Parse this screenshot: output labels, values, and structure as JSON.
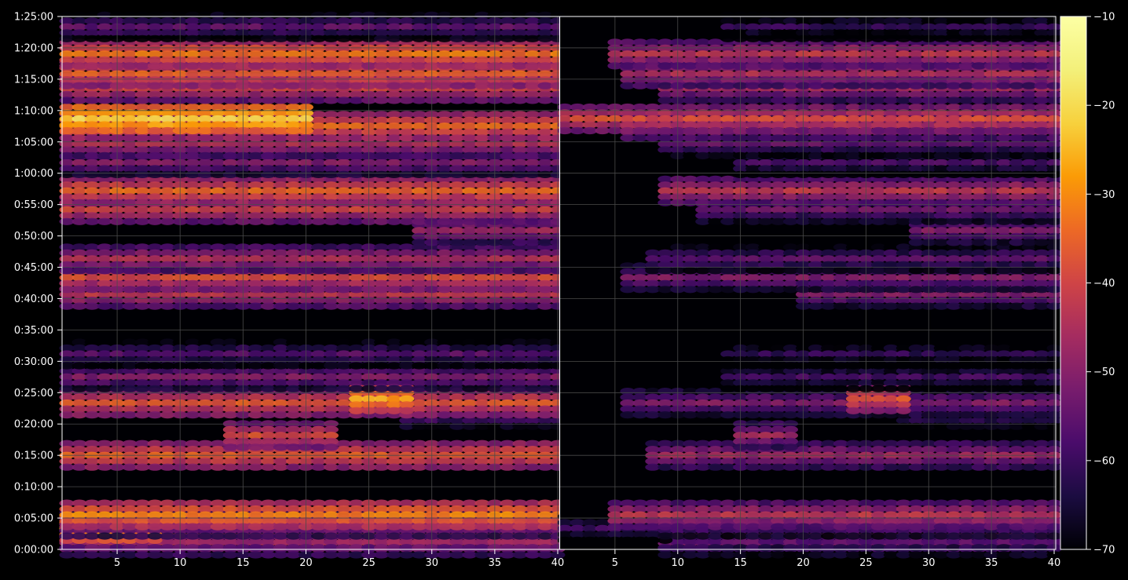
{
  "theme": {
    "background": "#000000",
    "grid": "#4a4a4a",
    "axis": "#ffffff",
    "text": "#ffffff"
  },
  "chart_data": {
    "type": "heatmap",
    "colormap": "inferno",
    "colorbar": {
      "min": -70,
      "max": -10,
      "ticks": [
        "−10",
        "−20",
        "−30",
        "−40",
        "−50",
        "−60",
        "−70"
      ],
      "tick_values": [
        -10,
        -20,
        -30,
        -40,
        -50,
        -60,
        -70
      ]
    },
    "y_axis": {
      "unit": "elapsed time",
      "ticks": [
        "1:25:00",
        "1:20:00",
        "1:15:00",
        "1:10:00",
        "1:05:00",
        "1:00:00",
        "0:55:00",
        "0:50:00",
        "0:45:00",
        "0:40:00",
        "0:35:00",
        "0:30:00",
        "0:25:00",
        "0:20:00",
        "0:15:00",
        "0:10:00",
        "0:05:00",
        "0:00:00"
      ],
      "range_seconds": [
        0,
        5100
      ]
    },
    "panels": [
      {
        "x_range": [
          1,
          40
        ],
        "x_ticks": [
          "5",
          "10",
          "15",
          "20",
          "25",
          "30",
          "35",
          "40"
        ],
        "x_tick_values": [
          5,
          10,
          15,
          20,
          25,
          30,
          35,
          40
        ],
        "bands": [
          {
            "t": 60,
            "level": -44,
            "x_from": 1,
            "x_to": 40
          },
          {
            "t": 130,
            "level": -38,
            "x_from": 1,
            "x_to": 40
          },
          {
            "t": 200,
            "level": -22,
            "x_from": 1,
            "x_to": 8
          },
          {
            "t": 240,
            "level": -45,
            "x_from": 1,
            "x_to": 40
          },
          {
            "t": 330,
            "level": -28,
            "x_from": 1,
            "x_to": 40
          },
          {
            "t": 900,
            "level": -33,
            "x_from": 1,
            "x_to": 40
          },
          {
            "t": 1090,
            "level": -36,
            "x_from": 14,
            "x_to": 22
          },
          {
            "t": 1290,
            "level": -50,
            "x_from": 28,
            "x_to": 40
          },
          {
            "t": 1400,
            "level": -34,
            "x_from": 1,
            "x_to": 40
          },
          {
            "t": 1440,
            "level": -24,
            "x_from": 24,
            "x_to": 28
          },
          {
            "t": 1650,
            "level": -48,
            "x_from": 1,
            "x_to": 40
          },
          {
            "t": 1870,
            "level": -53,
            "x_from": 1,
            "x_to": 40
          },
          {
            "t": 2440,
            "level": -40,
            "x_from": 1,
            "x_to": 40
          },
          {
            "t": 2600,
            "level": -36,
            "x_from": 1,
            "x_to": 40
          },
          {
            "t": 2780,
            "level": -42,
            "x_from": 1,
            "x_to": 40
          },
          {
            "t": 3050,
            "level": -44,
            "x_from": 29,
            "x_to": 40
          },
          {
            "t": 3250,
            "level": -38,
            "x_from": 1,
            "x_to": 40
          },
          {
            "t": 3430,
            "level": -32,
            "x_from": 1,
            "x_to": 40
          },
          {
            "t": 3700,
            "level": -48,
            "x_from": 1,
            "x_to": 40
          },
          {
            "t": 3880,
            "level": -42,
            "x_from": 1,
            "x_to": 40
          },
          {
            "t": 4050,
            "level": -31,
            "x_from": 1,
            "x_to": 40
          },
          {
            "t": 4120,
            "level": -18,
            "x_from": 1,
            "x_to": 20
          },
          {
            "t": 4410,
            "level": -38,
            "x_from": 1,
            "x_to": 40
          },
          {
            "t": 4550,
            "level": -33,
            "x_from": 1,
            "x_to": 40
          },
          {
            "t": 4740,
            "level": -30,
            "x_from": 1,
            "x_to": 40
          },
          {
            "t": 5000,
            "level": -52,
            "x_from": 1,
            "x_to": 40
          }
        ]
      },
      {
        "x_range": [
          1,
          40
        ],
        "x_ticks": [
          "5",
          "10",
          "15",
          "20",
          "25",
          "30",
          "35",
          "40"
        ],
        "x_tick_values": [
          5,
          10,
          15,
          20,
          25,
          30,
          35,
          40
        ],
        "bands": [
          {
            "t": 60,
            "level": -50,
            "x_from": 9,
            "x_to": 40
          },
          {
            "t": 130,
            "level": -46,
            "x_from": 9,
            "x_to": 40
          },
          {
            "t": 200,
            "level": -56,
            "x_from": 1,
            "x_to": 9
          },
          {
            "t": 240,
            "level": -50,
            "x_from": 9,
            "x_to": 40
          },
          {
            "t": 330,
            "level": -40,
            "x_from": 5,
            "x_to": 40
          },
          {
            "t": 900,
            "level": -44,
            "x_from": 8,
            "x_to": 40
          },
          {
            "t": 1090,
            "level": -44,
            "x_from": 15,
            "x_to": 19
          },
          {
            "t": 1290,
            "level": -52,
            "x_from": 28,
            "x_to": 40
          },
          {
            "t": 1400,
            "level": -48,
            "x_from": 6,
            "x_to": 40
          },
          {
            "t": 1440,
            "level": -34,
            "x_from": 24,
            "x_to": 28
          },
          {
            "t": 1650,
            "level": -56,
            "x_from": 14,
            "x_to": 40
          },
          {
            "t": 1870,
            "level": -58,
            "x_from": 14,
            "x_to": 40
          },
          {
            "t": 2440,
            "level": -48,
            "x_from": 20,
            "x_to": 40
          },
          {
            "t": 2600,
            "level": -48,
            "x_from": 6,
            "x_to": 40
          },
          {
            "t": 2780,
            "level": -52,
            "x_from": 8,
            "x_to": 40
          },
          {
            "t": 3050,
            "level": -48,
            "x_from": 29,
            "x_to": 40
          },
          {
            "t": 3250,
            "level": -50,
            "x_from": 12,
            "x_to": 40
          },
          {
            "t": 3430,
            "level": -40,
            "x_from": 9,
            "x_to": 40
          },
          {
            "t": 3700,
            "level": -55,
            "x_from": 15,
            "x_to": 40
          },
          {
            "t": 3880,
            "level": -52,
            "x_from": 9,
            "x_to": 40
          },
          {
            "t": 4050,
            "level": -42,
            "x_from": 6,
            "x_to": 40
          },
          {
            "t": 4120,
            "level": -36,
            "x_from": 1,
            "x_to": 40
          },
          {
            "t": 4410,
            "level": -44,
            "x_from": 9,
            "x_to": 40
          },
          {
            "t": 4550,
            "level": -42,
            "x_from": 6,
            "x_to": 40
          },
          {
            "t": 4740,
            "level": -40,
            "x_from": 5,
            "x_to": 40
          },
          {
            "t": 5000,
            "level": -58,
            "x_from": 14,
            "x_to": 40
          }
        ]
      }
    ]
  }
}
